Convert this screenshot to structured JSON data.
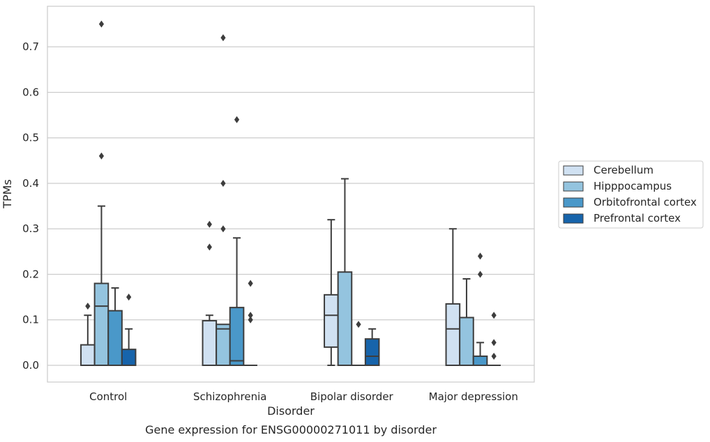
{
  "chart_data": {
    "type": "box",
    "xlabel": "Disorder",
    "ylabel": "TPMs",
    "caption": "Gene expression for ENSG00000271011 by disorder",
    "ylim": [
      -0.037,
      0.79
    ],
    "yticks": [
      0.0,
      0.1,
      0.2,
      0.3,
      0.4,
      0.5,
      0.6,
      0.7
    ],
    "ytick_labels": [
      "0.0",
      "0.1",
      "0.2",
      "0.3",
      "0.4",
      "0.5",
      "0.6",
      "0.7"
    ],
    "grid": "horizontal",
    "legend_position": "right",
    "categories": [
      "Control",
      "Schizophrenia",
      "Bipolar disorder",
      "Major depression"
    ],
    "series": [
      {
        "name": "Cerebellum",
        "color": "#d0e1f2",
        "boxes": [
          {
            "q1": 0.0,
            "median": 0.0,
            "q3": 0.045,
            "whisker_low": 0.0,
            "whisker_high": 0.11,
            "outliers": [
              0.13
            ]
          },
          {
            "q1": 0.0,
            "median": 0.0,
            "q3": 0.098,
            "whisker_low": 0.0,
            "whisker_high": 0.11,
            "outliers": [
              0.26,
              0.31
            ]
          },
          {
            "q1": 0.04,
            "median": 0.11,
            "q3": 0.155,
            "whisker_low": 0.0,
            "whisker_high": 0.32,
            "outliers": []
          },
          {
            "q1": 0.0,
            "median": 0.08,
            "q3": 0.135,
            "whisker_low": 0.0,
            "whisker_high": 0.3,
            "outliers": []
          }
        ]
      },
      {
        "name": "Hipppocampus",
        "color": "#94c4df",
        "boxes": [
          {
            "q1": 0.0,
            "median": 0.13,
            "q3": 0.18,
            "whisker_low": 0.0,
            "whisker_high": 0.35,
            "outliers": [
              0.46,
              0.75
            ]
          },
          {
            "q1": 0.0,
            "median": 0.08,
            "q3": 0.09,
            "whisker_low": 0.0,
            "whisker_high": 0.09,
            "outliers": [
              0.3,
              0.4,
              0.72
            ]
          },
          {
            "q1": 0.0,
            "median": 0.0,
            "q3": 0.205,
            "whisker_low": 0.0,
            "whisker_high": 0.41,
            "outliers": []
          },
          {
            "q1": 0.0,
            "median": 0.0,
            "q3": 0.105,
            "whisker_low": 0.0,
            "whisker_high": 0.19,
            "outliers": []
          }
        ]
      },
      {
        "name": "Orbitofrontal cortex",
        "color": "#4a98c9",
        "boxes": [
          {
            "q1": 0.0,
            "median": 0.0,
            "q3": 0.12,
            "whisker_low": 0.0,
            "whisker_high": 0.17,
            "outliers": []
          },
          {
            "q1": 0.0,
            "median": 0.01,
            "q3": 0.127,
            "whisker_low": 0.0,
            "whisker_high": 0.28,
            "outliers": [
              0.54
            ]
          },
          {
            "q1": 0.0,
            "median": 0.0,
            "q3": 0.0,
            "whisker_low": 0.0,
            "whisker_high": 0.0,
            "outliers": [
              0.09
            ]
          },
          {
            "q1": 0.0,
            "median": 0.0,
            "q3": 0.02,
            "whisker_low": 0.0,
            "whisker_high": 0.05,
            "outliers": [
              0.2,
              0.24
            ]
          }
        ]
      },
      {
        "name": "Prefrontal cortex",
        "color": "#1764ab",
        "boxes": [
          {
            "q1": 0.0,
            "median": 0.0,
            "q3": 0.035,
            "whisker_low": 0.0,
            "whisker_high": 0.08,
            "outliers": [
              0.15
            ]
          },
          {
            "q1": 0.0,
            "median": 0.0,
            "q3": 0.0,
            "whisker_low": 0.0,
            "whisker_high": 0.0,
            "outliers": [
              0.1,
              0.11,
              0.18
            ]
          },
          {
            "q1": 0.0,
            "median": 0.02,
            "q3": 0.058,
            "whisker_low": 0.0,
            "whisker_high": 0.08,
            "outliers": []
          },
          {
            "q1": 0.0,
            "median": 0.0,
            "q3": 0.0,
            "whisker_low": 0.0,
            "whisker_high": 0.0,
            "outliers": [
              0.02,
              0.05,
              0.11
            ]
          }
        ]
      }
    ]
  }
}
